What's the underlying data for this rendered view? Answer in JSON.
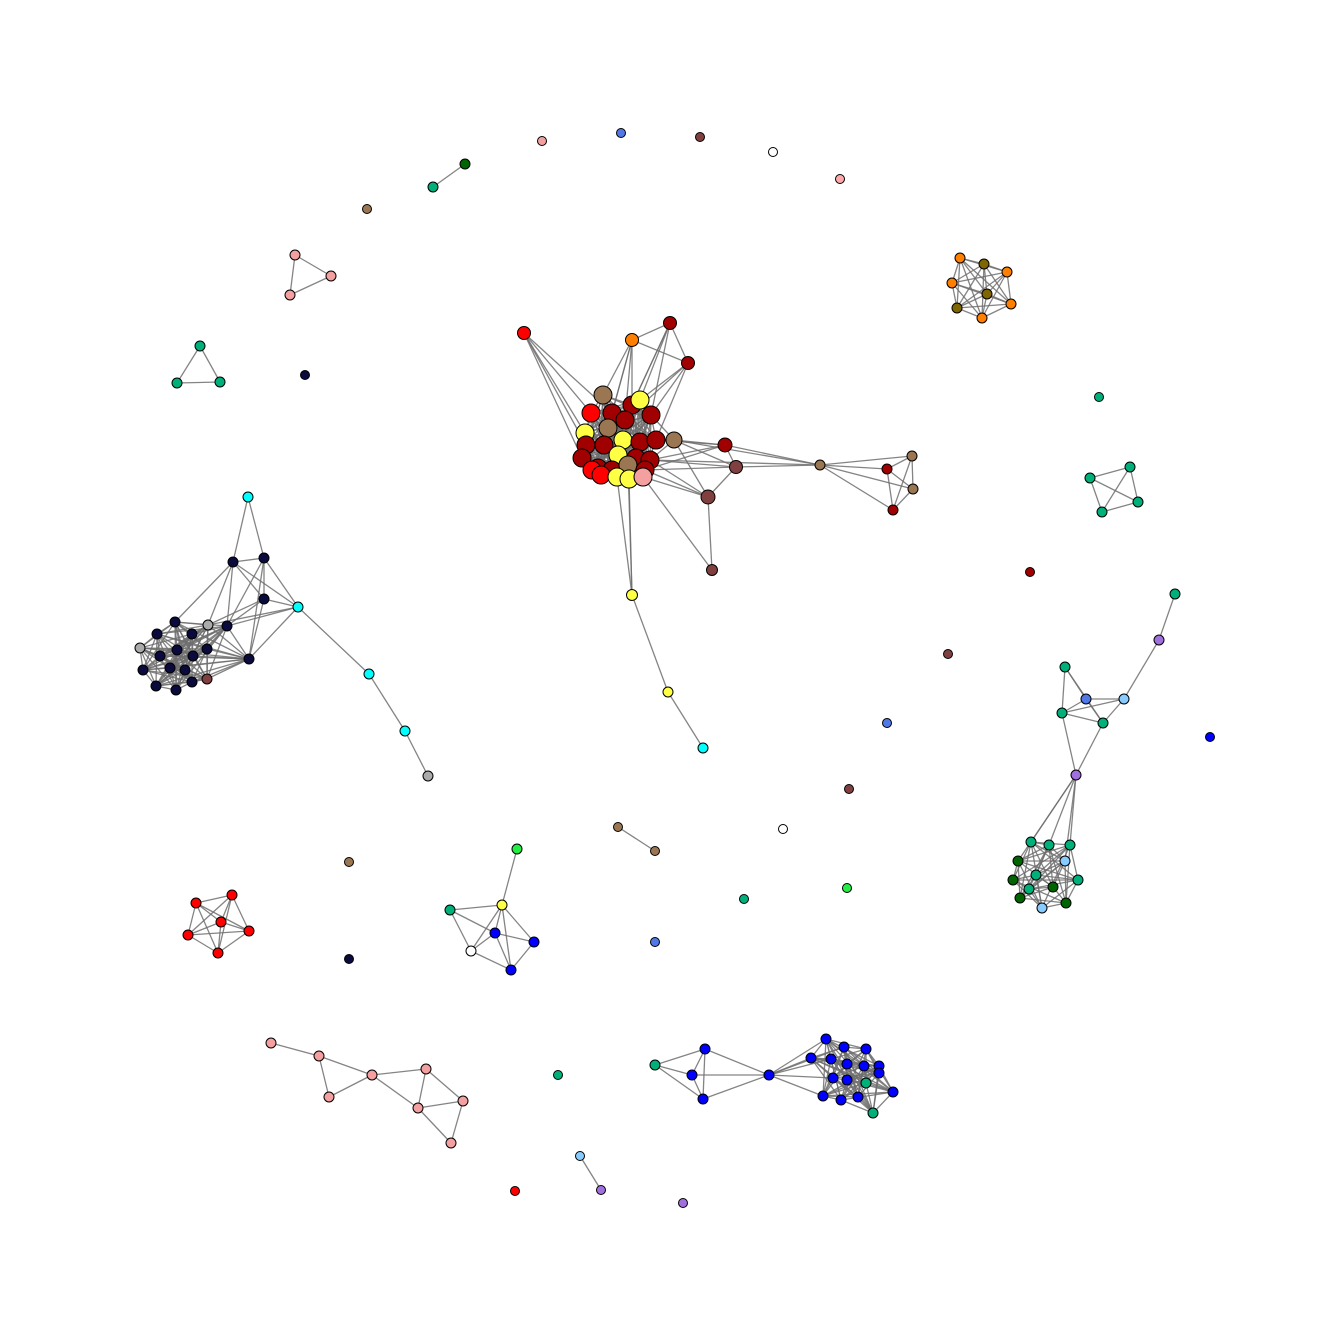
{
  "graph": {
    "type": "network",
    "layout": "force-directed",
    "edge_color": "#6e6e6e",
    "node_border_color": "#000000",
    "background": "#ffffff",
    "palette": {
      "darkred": "#a00000",
      "red": "#ff0000",
      "yellow": "#ffff44",
      "brown": "#9b7653",
      "orange": "#ff7f00",
      "salmon": "#f4a0a0",
      "maroon": "#804040",
      "navy": "#0a0a3c",
      "cyan": "#00ffff",
      "gray": "#aaaaaa",
      "green": "#00b07a",
      "dkgreen": "#006400",
      "blue": "#0000ff",
      "royal": "#5078e6",
      "white": "#ffffff",
      "lime": "#22ee44",
      "purple": "#a070dd",
      "skyblue": "#88ccff",
      "olive": "#806600",
      "pink": "#ffaaaa"
    }
  }
}
